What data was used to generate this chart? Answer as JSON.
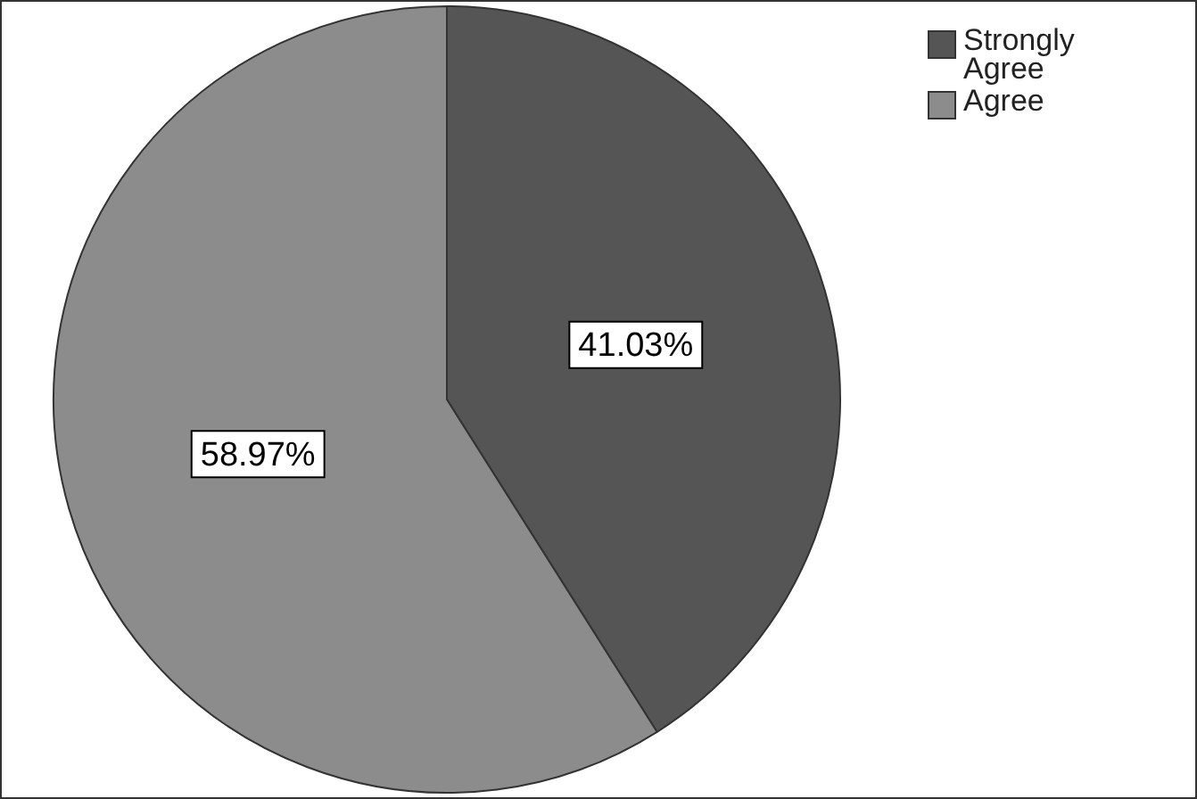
{
  "chart_data": {
    "type": "pie",
    "categories": [
      "Strongly Agree",
      "Agree"
    ],
    "values": [
      41.03,
      58.97
    ],
    "colors": [
      "#555555",
      "#8c8c8c"
    ],
    "legend": "top right",
    "value_labels": [
      "41.03%",
      "58.97%"
    ]
  }
}
